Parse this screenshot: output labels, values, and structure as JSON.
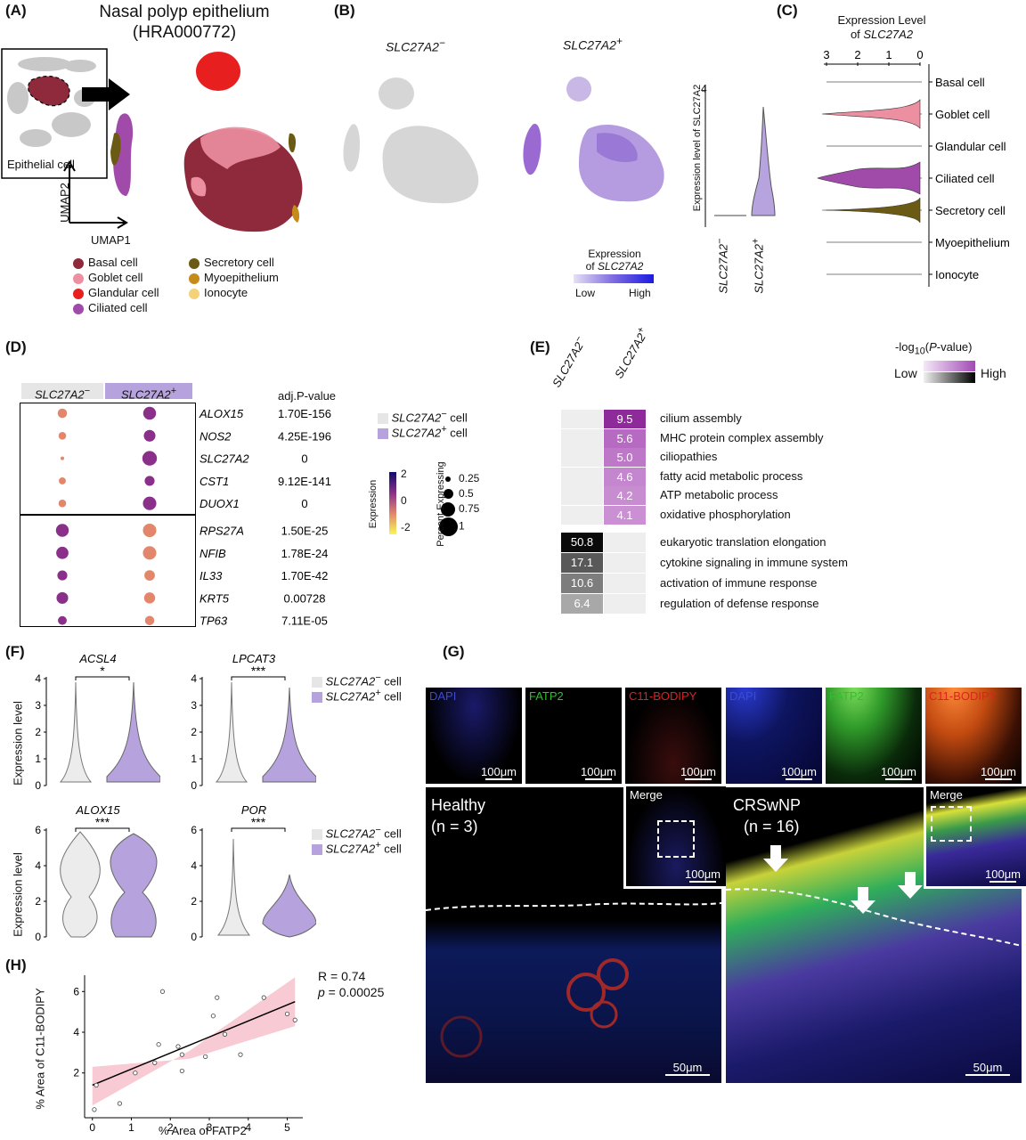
{
  "panelA": {
    "label": "(A)",
    "title1": "Nasal polyp epithelium",
    "title2": "(HRA000772)",
    "inset_label": "Epithelial cell",
    "umap1": "UMAP1",
    "umap2": "UMAP2",
    "legend": [
      {
        "name": "Basal cell",
        "color": "#8e2a3c"
      },
      {
        "name": "Goblet cell",
        "color": "#ec8fa0"
      },
      {
        "name": "Glandular cell",
        "color": "#e81f1f"
      },
      {
        "name": "Ciliated cell",
        "color": "#a04aaa"
      },
      {
        "name": "Secretory cell",
        "color": "#6b5a14"
      },
      {
        "name": "Myoepithelium",
        "color": "#c48a1a"
      },
      {
        "name": "Ionocyte",
        "color": "#f3d27a"
      }
    ]
  },
  "panelB": {
    "label": "(B)",
    "neg": "SLC27A2",
    "neg_sup": "−",
    "pos": "SLC27A2",
    "pos_sup": "+",
    "ylabel": "Expression level of SLC27A2",
    "ymax_tick": "4",
    "xneg": "SLC27A2",
    "xneg_sup": "−",
    "xpos": "SLC27A2",
    "xpos_sup": "+",
    "legend_t1": "Expression",
    "legend_t2": "of",
    "legend_gene": "SLC27A2",
    "low": "Low",
    "high": "High"
  },
  "panelC": {
    "label": "(C)",
    "title1": "Expression Level",
    "title2": "of",
    "title_gene": "SLC27A2",
    "ticks": [
      "3",
      "2",
      "1",
      "0"
    ],
    "rows": [
      {
        "name": "Basal cell",
        "color": "#8e2a3c",
        "w": 0
      },
      {
        "name": "Goblet cell",
        "color": "#ec8fa0",
        "w": 1
      },
      {
        "name": "Glandular cell",
        "color": "#e81f1f",
        "w": 0
      },
      {
        "name": "Ciliated cell",
        "color": "#a04aaa",
        "w": 2
      },
      {
        "name": "Secretory cell",
        "color": "#6b5a14",
        "w": 3
      },
      {
        "name": "Myoepithelium",
        "color": "#c48a1a",
        "w": 0
      },
      {
        "name": "Ionocyte",
        "color": "#f3d27a",
        "w": 0
      }
    ]
  },
  "panelD": {
    "label": "(D)",
    "col_neg": "SLC27A2",
    "col_neg_sup": "−",
    "col_pos": "SLC27A2",
    "col_pos_sup": "+",
    "adj_header": "adj.P-value",
    "genes": [
      {
        "g": "ALOX15",
        "p": "1.70E-156",
        "neg": [
          0.5,
          "#e2876c"
        ],
        "pos": [
          0.8,
          "#8a2f8a"
        ]
      },
      {
        "g": "NOS2",
        "p": "4.25E-196",
        "neg": [
          0.35,
          "#e2876c"
        ],
        "pos": [
          0.7,
          "#8a2f8a"
        ]
      },
      {
        "g": "SLC27A2",
        "p": "0",
        "neg": [
          0,
          "#e2876c"
        ],
        "pos": [
          0.95,
          "#8a2f8a"
        ]
      },
      {
        "g": "CST1",
        "p": "9.12E-141",
        "neg": [
          0.3,
          "#e2876c"
        ],
        "pos": [
          0.55,
          "#8a2f8a"
        ]
      },
      {
        "g": "DUOX1",
        "p": "0",
        "neg": [
          0.35,
          "#e2876c"
        ],
        "pos": [
          0.85,
          "#8a2f8a"
        ]
      },
      {
        "g": "RPS27A",
        "p": "1.50E-25",
        "neg": [
          0.8,
          "#8a2f8a"
        ],
        "pos": [
          0.85,
          "#e2876c"
        ]
      },
      {
        "g": "NFIB",
        "p": "1.78E-24",
        "neg": [
          0.75,
          "#8a2f8a"
        ],
        "pos": [
          0.85,
          "#e2876c"
        ]
      },
      {
        "g": "IL33",
        "p": "1.70E-42",
        "neg": [
          0.55,
          "#8a2f8a"
        ],
        "pos": [
          0.6,
          "#e2876c"
        ]
      },
      {
        "g": "KRT5",
        "p": "0.00728",
        "neg": [
          0.7,
          "#8a2f8a"
        ],
        "pos": [
          0.65,
          "#e2876c"
        ]
      },
      {
        "g": "TP63",
        "p": "7.11E-05",
        "neg": [
          0.45,
          "#8a2f8a"
        ],
        "pos": [
          0.5,
          "#e2876c"
        ]
      }
    ],
    "legend_neg": "SLC27A2",
    "legend_neg_sup": "−",
    "legend_neg_tail": " cell",
    "legend_pos": "SLC27A2",
    "legend_pos_sup": "+",
    "legend_pos_tail": " cell",
    "expr_title": "Expression",
    "expr_ticks": [
      "2",
      "0",
      "-2"
    ],
    "pct_title": "Percent Expressing",
    "pct_ticks": [
      "0.25",
      "0.5",
      "0.75",
      "1"
    ]
  },
  "panelE": {
    "label": "(E)",
    "col_neg": "SLC27A2",
    "col_neg_sup": "−",
    "col_pos": "SLC27A2",
    "col_pos_sup": "+",
    "legend_title_pre": "-log",
    "legend_title_sub": "10",
    "legend_title_mid": "(",
    "legend_title_it": "P",
    "legend_title_post": "-value)",
    "low": "Low",
    "high": "High",
    "pos_terms": [
      {
        "v": "9.5",
        "t": "cilium assembly",
        "c": "#8e2a9a"
      },
      {
        "v": "5.6",
        "t": "MHC protein complex assembly",
        "c": "#b66ac2"
      },
      {
        "v": "5.0",
        "t": "ciliopathies",
        "c": "#bd78c8"
      },
      {
        "v": "4.6",
        "t": "fatty acid metabolic process",
        "c": "#c486ce"
      },
      {
        "v": "4.2",
        "t": "ATP metabolic process",
        "c": "#c88dd1"
      },
      {
        "v": "4.1",
        "t": "oxidative phosphorylation",
        "c": "#ca90d3"
      }
    ],
    "neg_terms": [
      {
        "v": "50.8",
        "t": "eukaryotic translation elongation",
        "c": "#0a0a0a"
      },
      {
        "v": "17.1",
        "t": "cytokine signaling in immune system",
        "c": "#595959"
      },
      {
        "v": "10.6",
        "t": "activation of immune response",
        "c": "#7d7d7d"
      },
      {
        "v": "6.4",
        "t": "regulation of defense response",
        "c": "#a8a8a8"
      }
    ]
  },
  "panelF": {
    "label": "(F)",
    "ylabel": "Expression level",
    "plots": [
      {
        "gene": "ACSL4",
        "sig": "*",
        "ticks": [
          "0",
          "1",
          "2",
          "3",
          "4"
        ]
      },
      {
        "gene": "LPCAT3",
        "sig": "***",
        "ticks": [
          "0",
          "1",
          "2",
          "3",
          "4"
        ]
      },
      {
        "gene": "ALOX15",
        "sig": "***",
        "ticks": [
          "0",
          "2",
          "4",
          "6"
        ]
      },
      {
        "gene": "POR",
        "sig": "***",
        "ticks": [
          "0",
          "2",
          "4",
          "6"
        ]
      }
    ],
    "legend_neg": "SLC27A2",
    "legend_neg_sup": "−",
    "legend_neg_tail": " cell",
    "legend_pos": "SLC27A2",
    "legend_pos_sup": "+",
    "legend_pos_tail": " cell"
  },
  "panelG": {
    "label": "(G)",
    "dapi": "DAPI",
    "fatp2": "FATP2",
    "c11": "C11-BODIPY",
    "merge": "Merge",
    "scale100": "100μm",
    "scale50": "50μm",
    "healthy": "Healthy",
    "healthy_n": "(n = 3)",
    "crs": "CRSwNP",
    "crs_n": "(n = 16)"
  },
  "panelH": {
    "label": "(H)",
    "xlabel": "% Area of FATP2",
    "ylabel": "% Area of C11-BODIPY",
    "r": "R = 0.74",
    "p_pre": "p",
    "p_post": " = 0.00025",
    "xticks": [
      "0",
      "1",
      "2",
      "3",
      "4",
      "5"
    ],
    "yticks": [
      "2",
      "4",
      "6"
    ]
  },
  "chart_data": {
    "type": "scatter",
    "title": "",
    "xlabel": "% Area of FATP2",
    "ylabel": "% Area of C11-BODIPY",
    "xlim": [
      -0.2,
      5.4
    ],
    "ylim": [
      -0.2,
      6.8
    ],
    "points": [
      [
        0.05,
        0.2
      ],
      [
        0.1,
        1.4
      ],
      [
        0.7,
        0.5
      ],
      [
        1.1,
        2.0
      ],
      [
        1.6,
        2.5
      ],
      [
        1.7,
        3.4
      ],
      [
        1.8,
        6.0
      ],
      [
        2.2,
        3.3
      ],
      [
        2.3,
        2.9
      ],
      [
        2.3,
        2.1
      ],
      [
        2.9,
        2.8
      ],
      [
        3.1,
        4.8
      ],
      [
        3.2,
        5.7
      ],
      [
        3.4,
        3.9
      ],
      [
        3.8,
        2.9
      ],
      [
        4.4,
        5.7
      ],
      [
        5.0,
        4.9
      ],
      [
        5.2,
        4.6
      ]
    ],
    "fit": [
      [
        0,
        1.4
      ],
      [
        5.2,
        5.5
      ]
    ],
    "annotation": [
      "R = 0.74",
      "p = 0.00025"
    ]
  }
}
